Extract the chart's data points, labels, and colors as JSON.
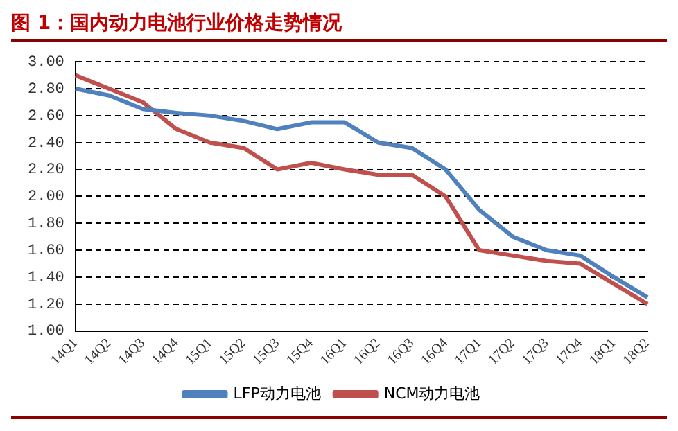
{
  "chart_data": {
    "type": "line",
    "title": "图 1：国内动力电池行业价格走势情况",
    "categories": [
      "14Q1",
      "14Q2",
      "14Q3",
      "14Q4",
      "15Q1",
      "15Q2",
      "15Q3",
      "15Q4",
      "16Q1",
      "16Q2",
      "16Q3",
      "16Q4",
      "17Q1",
      "17Q2",
      "17Q3",
      "17Q4",
      "18Q1",
      "18Q2"
    ],
    "series": [
      {
        "name": "LFP动力电池",
        "color": "#4f81bd",
        "values": [
          2.8,
          2.75,
          2.65,
          2.62,
          2.6,
          2.56,
          2.5,
          2.55,
          2.55,
          2.4,
          2.36,
          2.2,
          1.9,
          1.7,
          1.6,
          1.56,
          1.4,
          1.25
        ]
      },
      {
        "name": "NCM动力电池",
        "color": "#c0504d",
        "values": [
          2.9,
          2.8,
          2.7,
          2.5,
          2.4,
          2.36,
          2.2,
          2.25,
          2.2,
          2.16,
          2.16,
          2.0,
          1.6,
          1.56,
          1.52,
          1.5,
          1.35,
          1.2
        ]
      }
    ],
    "ylim": [
      1.0,
      3.0
    ],
    "yticks": [
      {
        "value": 1.0,
        "label": "1.00"
      },
      {
        "value": 1.2,
        "label": "1.20"
      },
      {
        "value": 1.4,
        "label": "1.40"
      },
      {
        "value": 1.6,
        "label": "1.60"
      },
      {
        "value": 1.8,
        "label": "1.80"
      },
      {
        "value": 2.0,
        "label": "2.00"
      },
      {
        "value": 2.2,
        "label": "2.20"
      },
      {
        "value": 2.4,
        "label": "2.40"
      },
      {
        "value": 2.6,
        "label": "2.60"
      },
      {
        "value": 2.8,
        "label": "2.80"
      },
      {
        "value": 3.0,
        "label": "3.00"
      }
    ],
    "grid": "y",
    "legend": "bottom",
    "marker": "none",
    "line_style": "solid"
  }
}
